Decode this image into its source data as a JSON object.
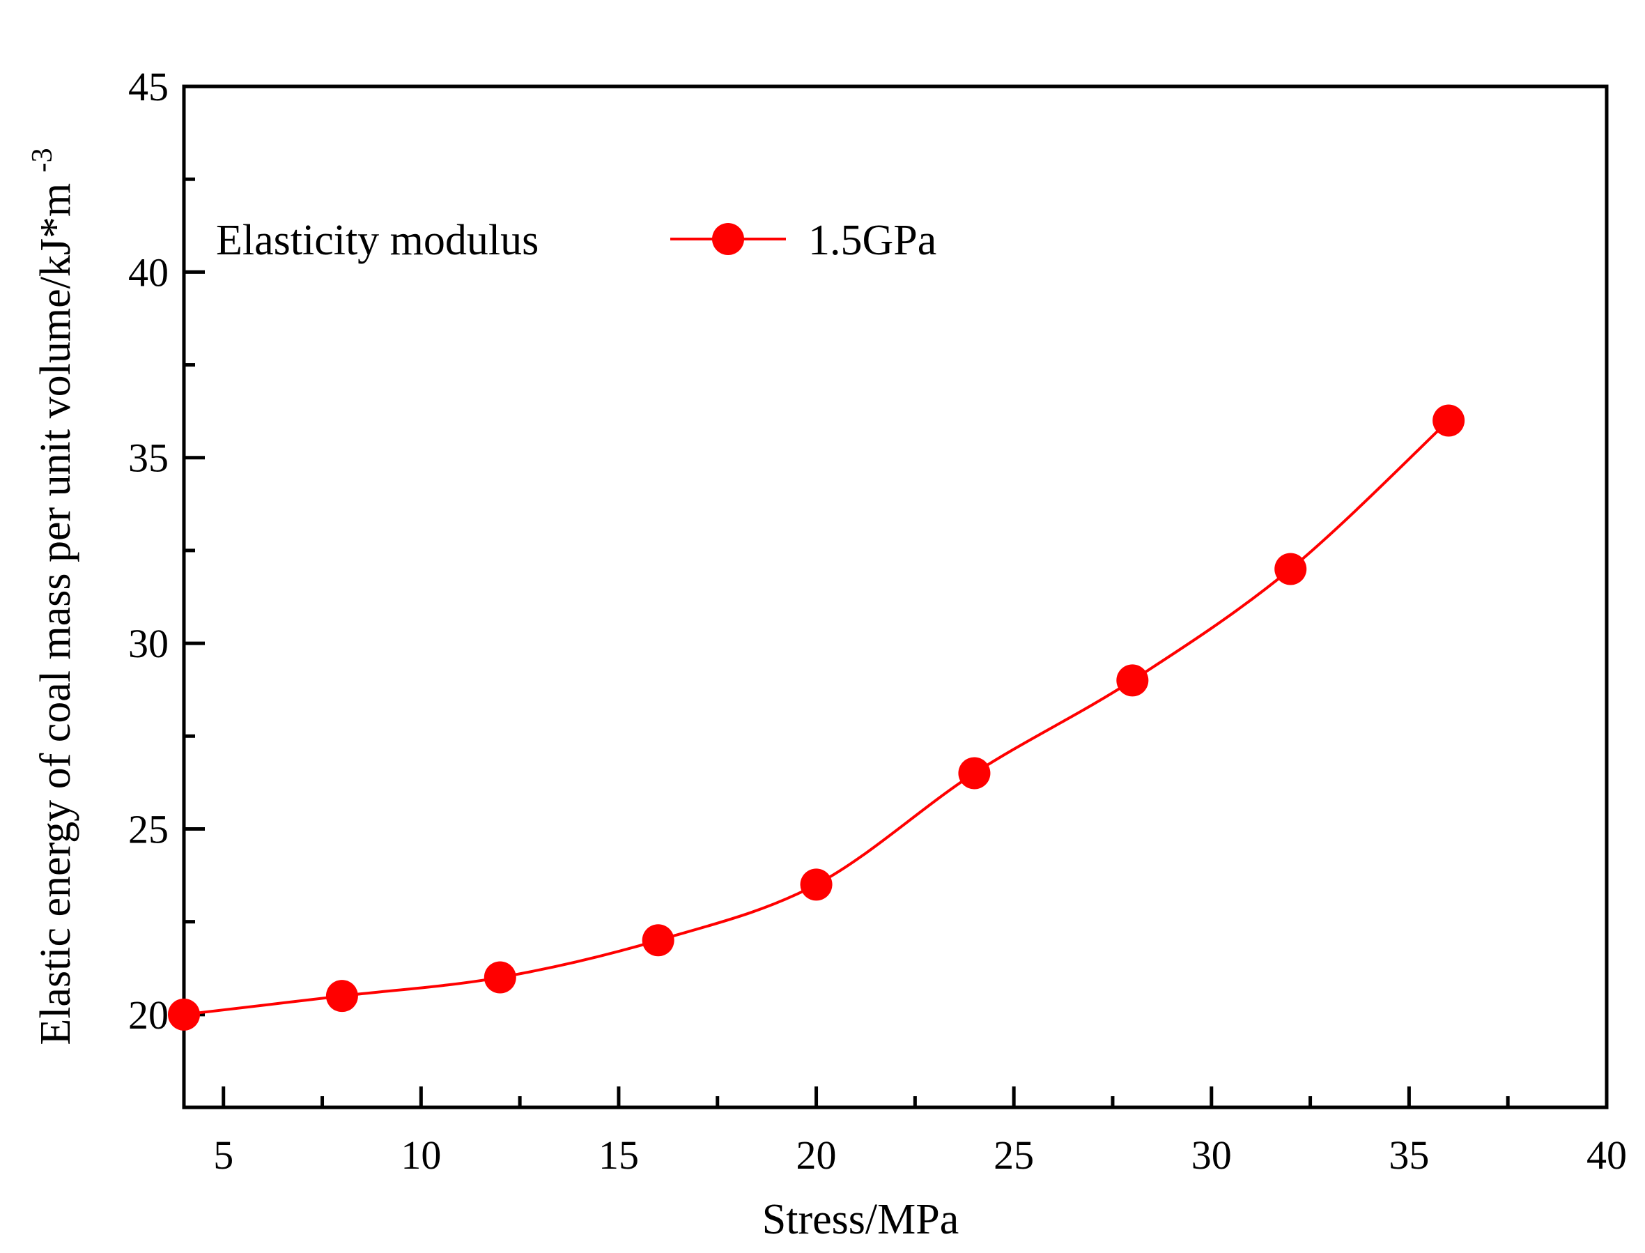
{
  "chart_data": {
    "type": "line",
    "title": "",
    "xlabel": "Stress/MPa",
    "ylabel": "Elastic energy of coal mass per unit volume/kJ*m",
    "ylabel_superscript": "-3",
    "xlim": [
      4,
      40
    ],
    "ylim": [
      17.5,
      45
    ],
    "x_ticks": [
      5,
      10,
      15,
      20,
      25,
      30,
      35,
      40
    ],
    "y_ticks": [
      20,
      25,
      30,
      35,
      40,
      45
    ],
    "grid": false,
    "legend": {
      "title": "Elasticity modulus",
      "placement": "top-left"
    },
    "series": [
      {
        "name": "1.5GPa",
        "color": "#ff0000",
        "x": [
          4,
          8,
          12,
          16,
          20,
          24,
          28,
          32,
          36
        ],
        "values": [
          20,
          20.5,
          21,
          22,
          23.5,
          26.5,
          29,
          32,
          36
        ]
      }
    ]
  }
}
